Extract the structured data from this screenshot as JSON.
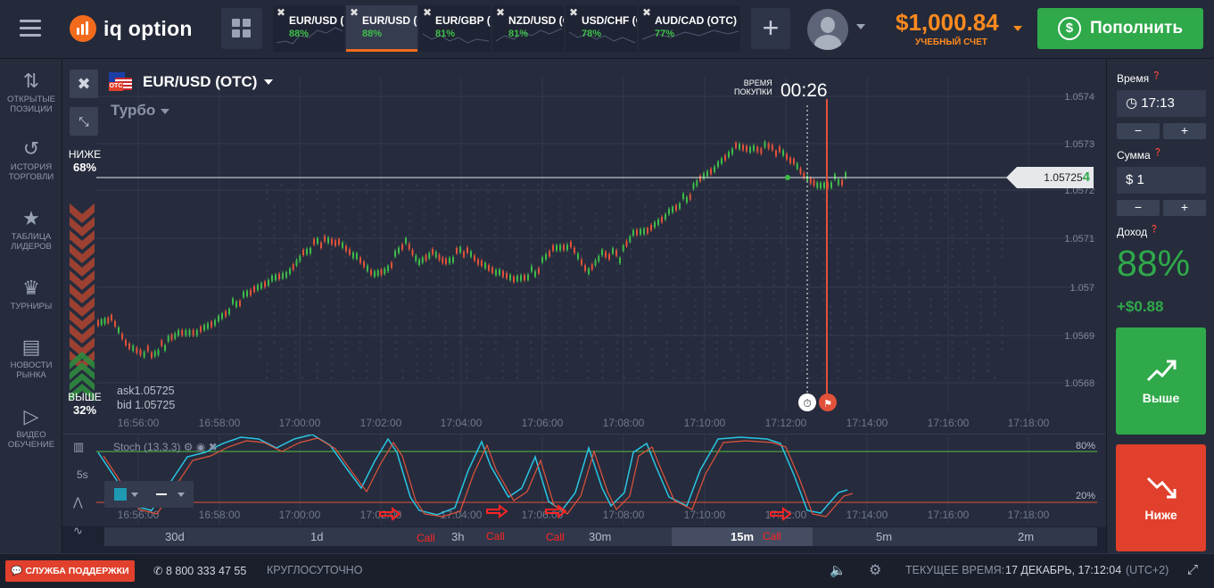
{
  "topbar": {
    "logo": "iq option",
    "tabs": [
      {
        "name": "EUR/USD (OTC)",
        "pct": "88%",
        "active": false
      },
      {
        "name": "EUR/USD (OTC)",
        "pct": "88%",
        "active": true
      },
      {
        "name": "EUR/GBP (OTC)",
        "pct": "81%",
        "active": false
      },
      {
        "name": "NZD/USD (OTC)",
        "pct": "81%",
        "active": false
      },
      {
        "name": "USD/CHF (OTC)",
        "pct": "78%",
        "active": false
      },
      {
        "name": "AUD/CAD (OTC)",
        "pct": "77%",
        "active": false
      }
    ],
    "balance": "$1,000.84",
    "account_type": "УЧЕБНЫЙ СЧЕТ",
    "deposit_label": "Пополнить",
    "deposit_icon": "dollar-cycle-icon"
  },
  "sidebar": {
    "items": [
      {
        "label": "ОТКРЫТЫЕ ПОЗИЦИИ",
        "icon": "arrows-updown-icon"
      },
      {
        "label": "ИСТОРИЯ ТОРГОВЛИ",
        "icon": "history-icon"
      },
      {
        "label": "ТАБЛИЦА ЛИДЕРОВ",
        "icon": "leaders-icon"
      },
      {
        "label": "ТУРНИРЫ",
        "icon": "trophy-icon"
      },
      {
        "label": "НОВОСТИ РЫНКА",
        "icon": "news-icon"
      },
      {
        "label": "ВИДЕО ОБУЧЕНИЕ",
        "icon": "play-icon"
      }
    ]
  },
  "chart": {
    "asset": "EUR/USD (OTC)",
    "flag_badge": "OTC",
    "mode": "Турбо",
    "lower_label": "НИЖЕ",
    "lower_pct": "68%",
    "higher_label": "ВЫШЕ",
    "higher_pct": "32%",
    "ask": "ask1.05725",
    "bid": "bid 1.05725",
    "purchase_label_1": "ВРЕМЯ",
    "purchase_label_2": "ПОКУПКИ",
    "purchase_timer": "00:26",
    "price_tag": "1.05725",
    "price_tag_last": "4",
    "price_axis": [
      "1.0574",
      "1.0573",
      "1.0572",
      "1.0571",
      "1.057",
      "1.0569",
      "1.0568"
    ],
    "time_axis": [
      "16:56:00",
      "16:58:00",
      "17:00:00",
      "17:02:00",
      "17:04:00",
      "17:06:00",
      "17:08:00",
      "17:10:00",
      "17:12:00",
      "17:14:00",
      "17:16:00",
      "17:18:00"
    ]
  },
  "indicator": {
    "name": "Stoch (13,3,3)",
    "level_high": "80%",
    "level_low": "20%",
    "timeframe": "5s",
    "call_labels": [
      "Call",
      "Call",
      "Call",
      "Call"
    ]
  },
  "scale": {
    "items": [
      "30d",
      "1d",
      "3h",
      "30m",
      "15m",
      "5m",
      "2m"
    ],
    "selected": "15m"
  },
  "right_panel": {
    "time_label": "Время",
    "time_value": "17:13",
    "amount_label": "Сумма",
    "amount_value": "$ 1",
    "income_label": "Доход",
    "income_pct": "88%",
    "income_value": "+$0.88",
    "higher_button": "Выше",
    "lower_button": "Ниже",
    "minus": "−",
    "plus": "+"
  },
  "footer": {
    "support": "СЛУЖБА ПОДДЕРЖКИ",
    "phone": "8 800 333 47 55",
    "hours": "КРУГЛОСУТОЧНО",
    "current_time_label": "ТЕКУЩЕЕ ВРЕМЯ:",
    "current_time": "17 ДЕКАБРЬ, 17:12:04",
    "tz": "(UTC+2)"
  },
  "colors": {
    "accent": "#f26b1d",
    "green": "#2fa94a",
    "red": "#e0402c",
    "balance": "#ff8a1e"
  }
}
